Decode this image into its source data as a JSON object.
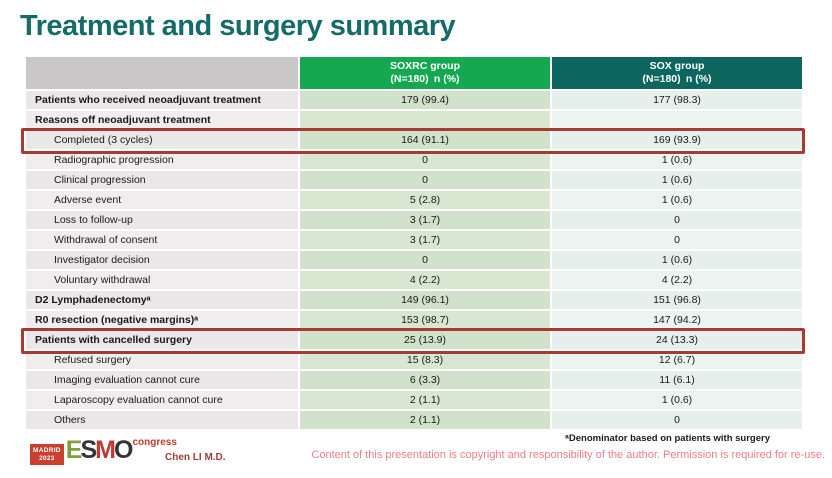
{
  "title": "Treatment and surgery summary",
  "colors": {
    "title": "#156b68",
    "header_soxrc_bg": "#16a751",
    "header_sox_bg": "#0d6560",
    "highlight_border": "#a83a34",
    "copyright_text": "#ee7e84"
  },
  "table": {
    "header": {
      "soxrc_line1": "SOXRC group",
      "soxrc_line2": "(N=180) n (%)",
      "sox_line1": "SOX group",
      "sox_line2": "(N=180) n (%)"
    },
    "rows": [
      {
        "label": "Patients who received neoadjuvant treatment",
        "soxrc": "179 (99.4)",
        "sox": "177 (98.3)"
      },
      {
        "label": "Reasons off neoadjuvant treatment",
        "soxrc": "",
        "sox": ""
      },
      {
        "label": "Completed (3 cycles)",
        "soxrc": "164 (91.1)",
        "sox": "169 (93.9)"
      },
      {
        "label": "Radiographic progression",
        "soxrc": "0",
        "sox": "1 (0.6)"
      },
      {
        "label": "Clinical progression",
        "soxrc": "0",
        "sox": "1 (0.6)"
      },
      {
        "label": "Adverse event",
        "soxrc": "5 (2.8)",
        "sox": "1 (0.6)"
      },
      {
        "label": "Loss to follow-up",
        "soxrc": "3 (1.7)",
        "sox": "0"
      },
      {
        "label": "Withdrawal of consent",
        "soxrc": "3 (1.7)",
        "sox": "0"
      },
      {
        "label": "Investigator decision",
        "soxrc": "0",
        "sox": "1 (0.6)"
      },
      {
        "label": "Voluntary withdrawal",
        "soxrc": "4 (2.2)",
        "sox": "4 (2.2)"
      },
      {
        "label": "D2 Lymphadenectomyᵃ",
        "soxrc": "149 (96.1)",
        "sox": "151 (96.8)"
      },
      {
        "label": "R0 resection (negative margins)ᵃ",
        "soxrc": "153 (98.7)",
        "sox": "147 (94.2)"
      },
      {
        "label": "Patients with cancelled surgery",
        "soxrc": "25 (13.9)",
        "sox": "24 (13.3)"
      },
      {
        "label": "Refused surgery",
        "soxrc": "15 (8.3)",
        "sox": "12 (6.7)"
      },
      {
        "label": "Imaging evaluation cannot cure",
        "soxrc": "6 (3.3)",
        "sox": "11 (6.1)"
      },
      {
        "label": "Laparoscopy evaluation cannot cure",
        "soxrc": "2 (1.1)",
        "sox": "1 (0.6)"
      },
      {
        "label": "Others",
        "soxrc": "2 (1.1)",
        "sox": "0"
      }
    ]
  },
  "footer": {
    "footnote": "ᵃDenominator based on patients with surgery",
    "copyright": "Content of this presentation is copyright and responsibility of the author. Permission is required for re-use.",
    "author": "Chen LI M.D.",
    "logo": {
      "madrid_line1": "MADRID",
      "madrid_line2": "2023",
      "letter_e": "E",
      "letter_s": "S",
      "letter_m": "M",
      "letter_o": "O",
      "congress": "congress"
    }
  }
}
